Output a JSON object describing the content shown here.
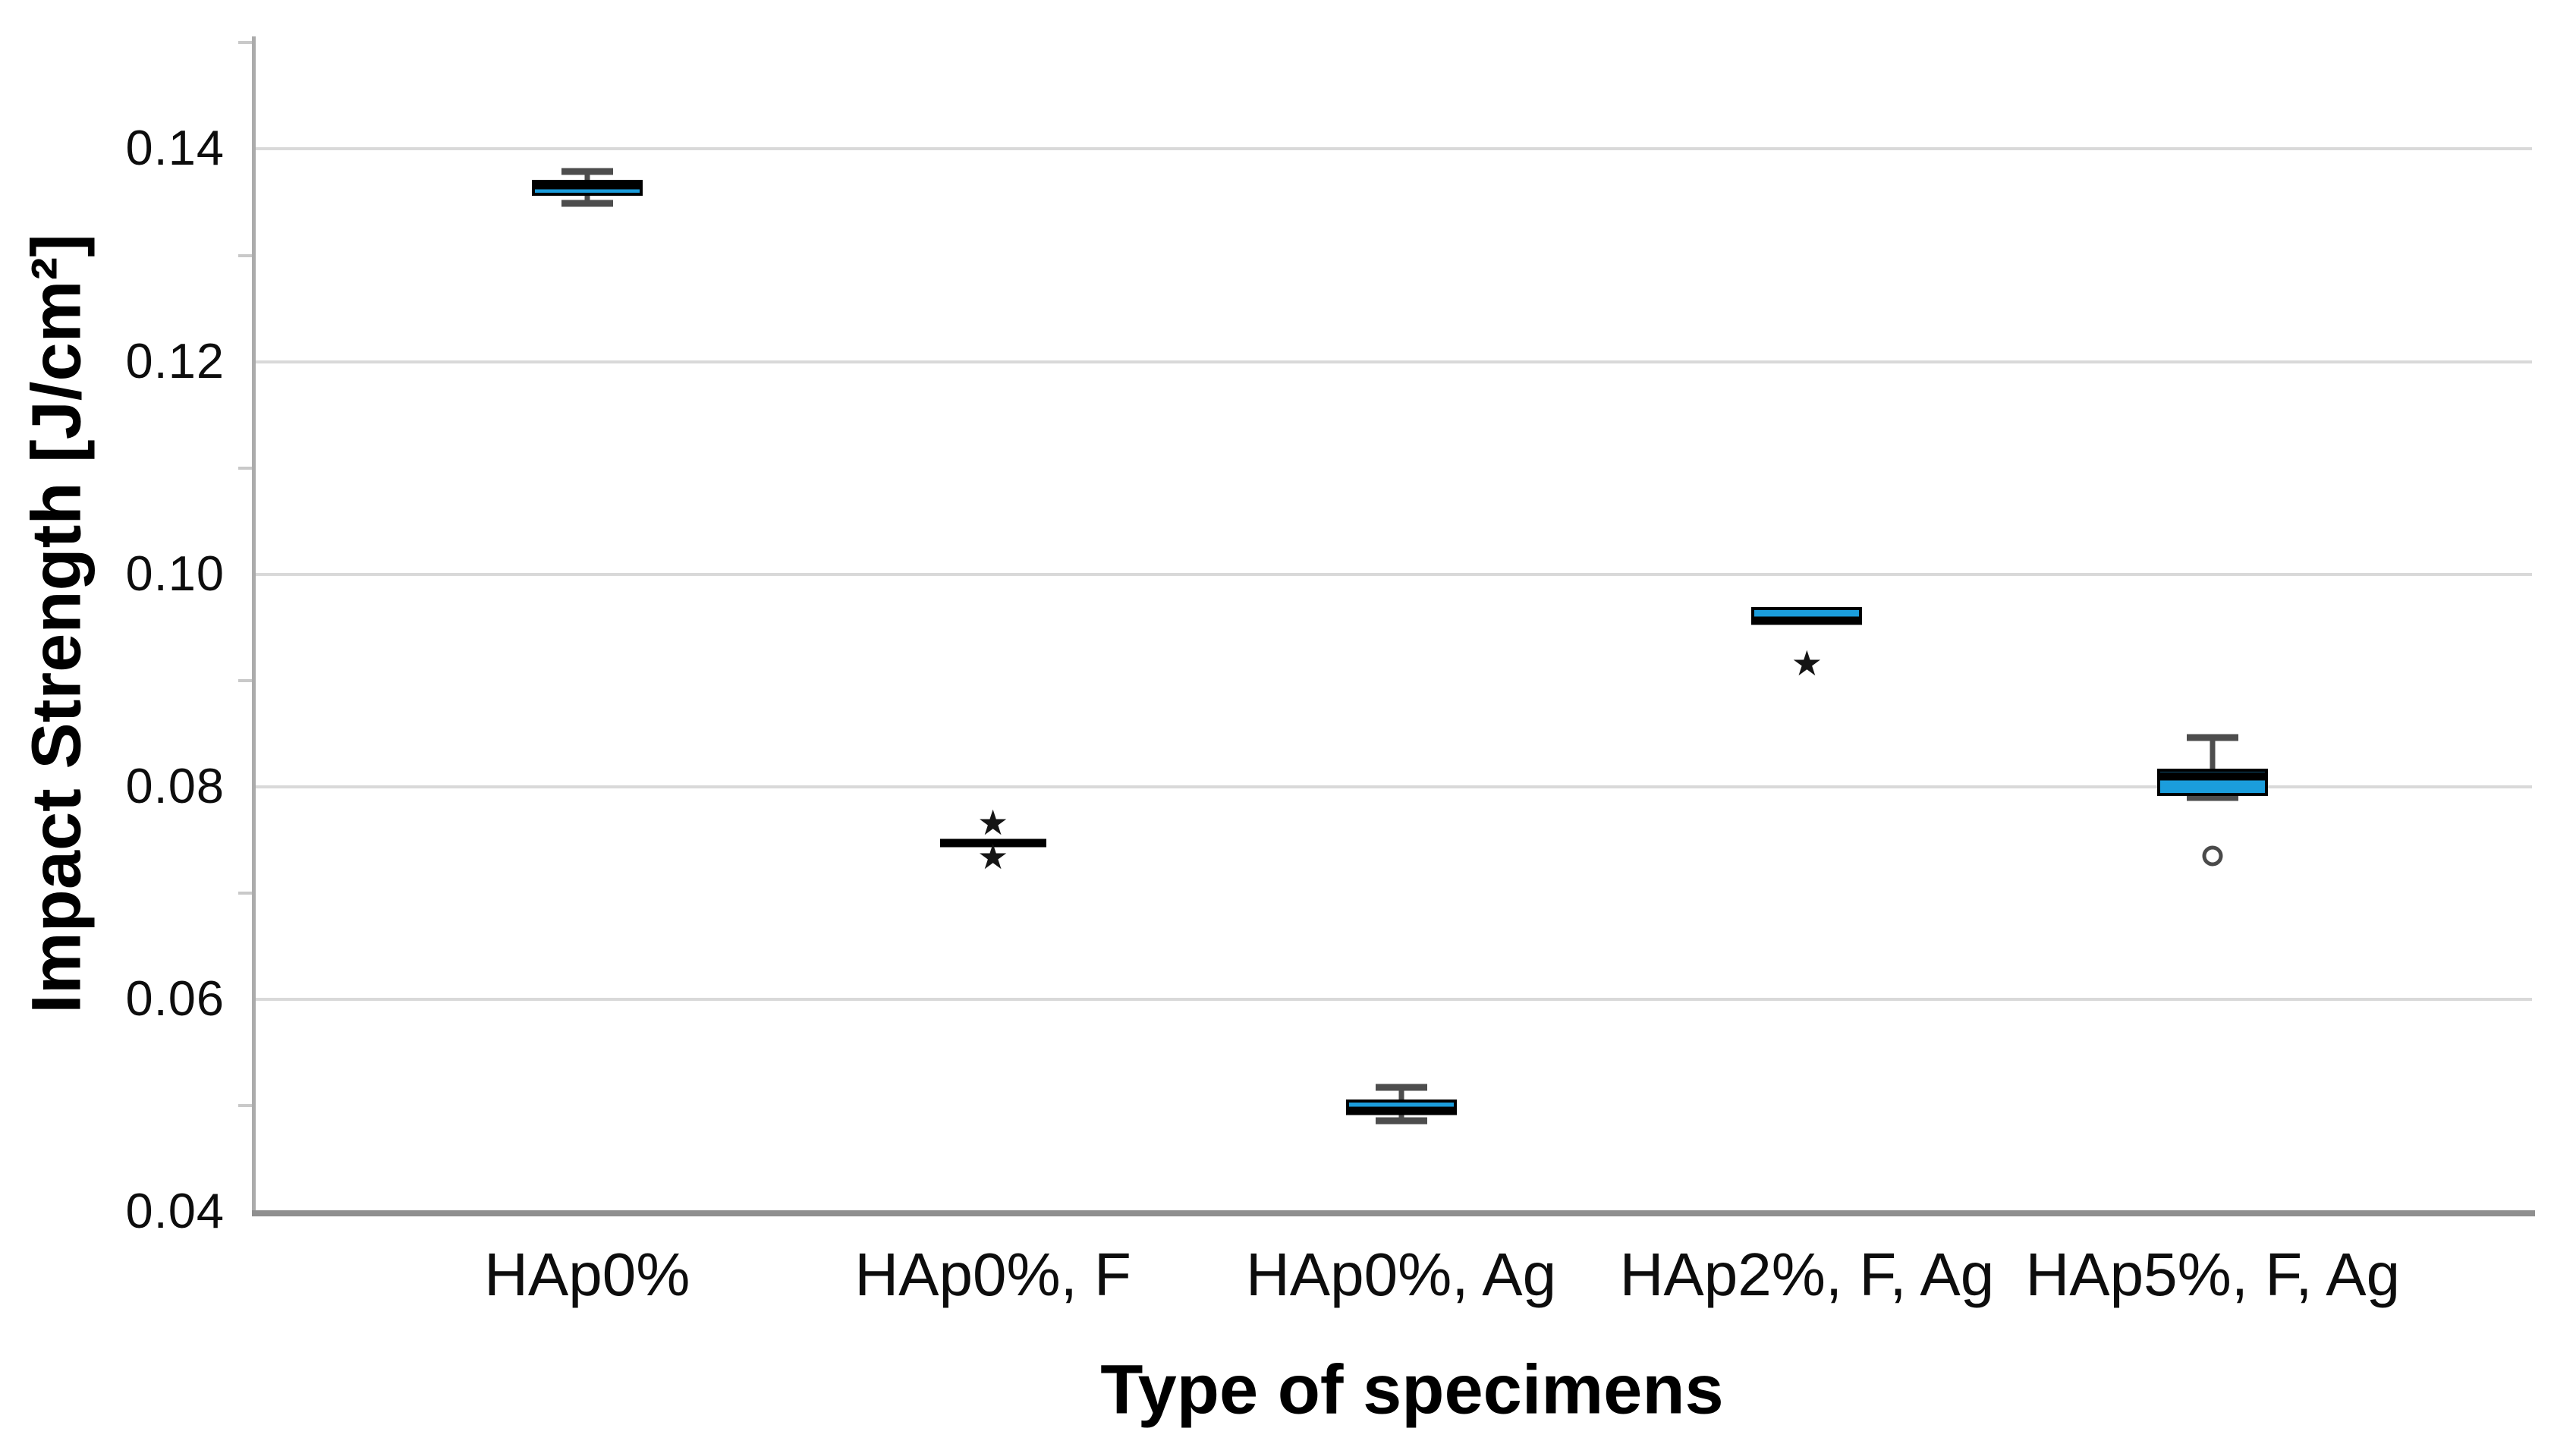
{
  "chart_data": {
    "type": "box",
    "title": "",
    "xlabel": "Type of specimens",
    "ylabel": "Impact Strength [J/cm²]",
    "ylim": [
      0.04,
      0.1506
    ],
    "yticks": [
      0.04,
      0.06,
      0.08,
      0.1,
      0.12,
      0.14
    ],
    "ytick_labels": [
      "0.04",
      "0.06",
      "0.08",
      "0.10",
      "0.12",
      "0.14"
    ],
    "minor_ticks": [
      0.05,
      0.07,
      0.09,
      0.11,
      0.13,
      0.15
    ],
    "grid": "horizontal",
    "legend": "none",
    "categories": [
      "HAp0%",
      "HAp0%, F",
      "HAp0%, Ag",
      "HAp2%, F, Ag",
      "HAp5%, F, Ag"
    ],
    "boxes": [
      {
        "category": "HAp0%",
        "min": 0.1349,
        "q1": 0.1356,
        "median": 0.1366,
        "q3": 0.1371,
        "max": 0.1379,
        "outliers": []
      },
      {
        "category": "HAp0%, F",
        "min": null,
        "q1": 0.0747,
        "median": 0.0747,
        "q3": 0.0747,
        "max": null,
        "outliers": [
          {
            "type": "star",
            "value": 0.0766
          },
          {
            "type": "star",
            "value": 0.0734
          }
        ]
      },
      {
        "category": "HAp0%, Ag",
        "min": 0.0486,
        "q1": 0.0493,
        "median": 0.0495,
        "q3": 0.0506,
        "max": 0.0517,
        "outliers": []
      },
      {
        "category": "HAp2%, F, Ag",
        "min": null,
        "q1": 0.0954,
        "median": 0.0956,
        "q3": 0.0969,
        "max": null,
        "outliers": [
          {
            "type": "star",
            "value": 0.0916
          }
        ]
      },
      {
        "category": "HAp5%, F, Ag",
        "min": 0.079,
        "q1": 0.0791,
        "median": 0.081,
        "q3": 0.0817,
        "max": 0.0846,
        "outliers": [
          {
            "type": "circle",
            "value": 0.0735
          }
        ]
      }
    ],
    "colors": {
      "box_fill": "#1b9ddc",
      "box_border": "#000000",
      "median": "#000000",
      "whisker": "#4d4d4d",
      "gridline": "#d9d9d9",
      "y_axis": "#ababab",
      "x_axis": "#8f8f8f",
      "text": "#0d0d0d"
    }
  }
}
